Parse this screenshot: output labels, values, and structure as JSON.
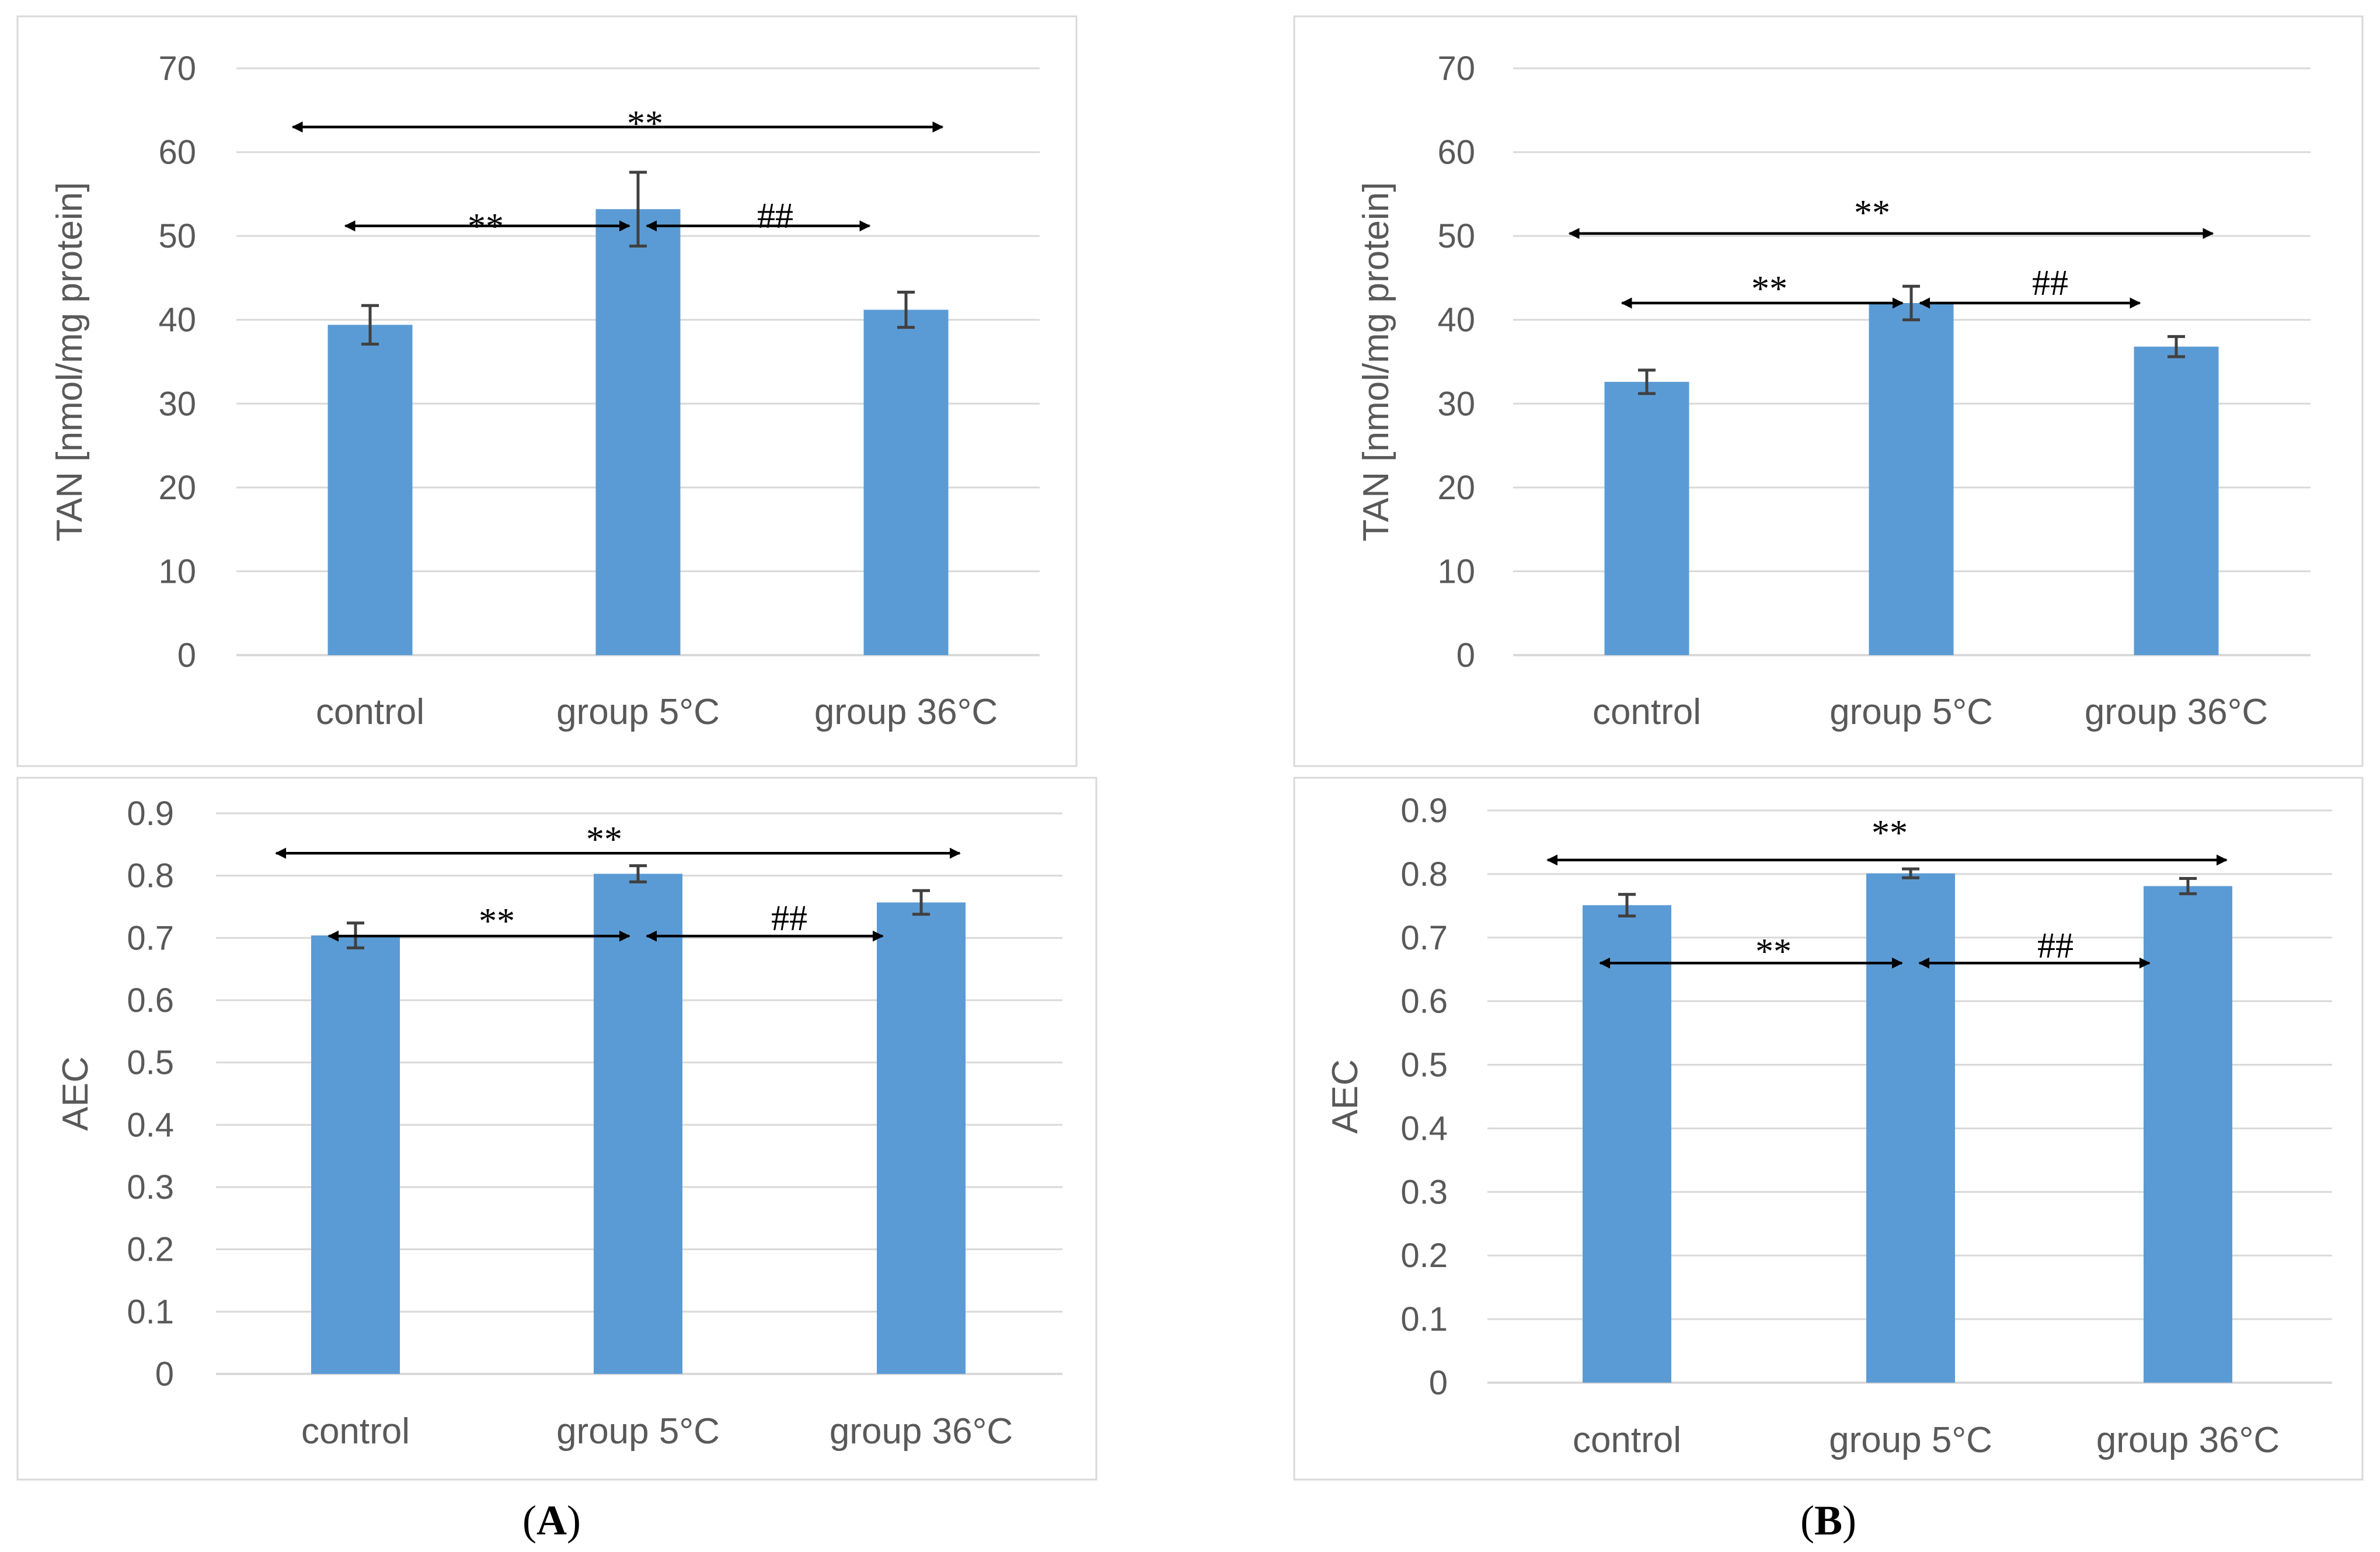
{
  "colors": {
    "bar": "#5b9bd5",
    "grid": "#d9d9d9",
    "axis_text": "#595959",
    "frame": "#d9d9d9",
    "error_bar": "#404040",
    "annotation": "#000000"
  },
  "panel_labels": [
    {
      "open": "(",
      "letter": "A",
      "close": ")"
    },
    {
      "open": "(",
      "letter": "B",
      "close": ")"
    }
  ],
  "chart_data": [
    {
      "id": "A-TAN",
      "type": "bar",
      "categories": [
        "control",
        "group 5°C",
        "group 36°C"
      ],
      "values": [
        39.4,
        53.2,
        41.2
      ],
      "errors": [
        2.3,
        4.4,
        2.1
      ],
      "ylabel": "TAN [nmol/mg protein]",
      "ylim": [
        0,
        70
      ],
      "ytick_step": 10,
      "yticks": [
        "0",
        "10",
        "20",
        "30",
        "40",
        "50",
        "60",
        "70"
      ],
      "grid": true,
      "annotations": [
        {
          "type": "double-arrow",
          "from": 0,
          "to": 2,
          "y": 63,
          "label": "**"
        },
        {
          "type": "double-arrow",
          "from": 0,
          "to": 1,
          "y": 51.2,
          "label": "**"
        },
        {
          "type": "double-arrow",
          "from": 1,
          "to": 2,
          "y": 51.2,
          "label": "##"
        }
      ]
    },
    {
      "id": "B-TAN",
      "type": "bar",
      "categories": [
        "control",
        "group 5°C",
        "group 36°C"
      ],
      "values": [
        32.6,
        42.0,
        36.8
      ],
      "errors": [
        1.4,
        2.0,
        1.2
      ],
      "ylabel": "TAN [nmol/mg protein]",
      "ylim": [
        0,
        70
      ],
      "ytick_step": 10,
      "yticks": [
        "0",
        "10",
        "20",
        "30",
        "40",
        "50",
        "60",
        "70"
      ],
      "grid": true,
      "annotations": [
        {
          "type": "double-arrow",
          "from": 0,
          "to": 2,
          "y": 50.3,
          "label": "**"
        },
        {
          "type": "double-arrow",
          "from": 0,
          "to": 1,
          "y": 42.0,
          "label": "**"
        },
        {
          "type": "double-arrow",
          "from": 1,
          "to": 2,
          "y": 42.0,
          "label": "##"
        }
      ]
    },
    {
      "id": "A-AEC",
      "type": "bar",
      "categories": [
        "control",
        "group 5°C",
        "group 36°C"
      ],
      "values": [
        0.704,
        0.803,
        0.757
      ],
      "errors": [
        0.02,
        0.013,
        0.019
      ],
      "ylabel": "AEC",
      "ylim": [
        0,
        0.9
      ],
      "ytick_step": 0.1,
      "yticks": [
        "0",
        "0.1",
        "0.2",
        "0.3",
        "0.4",
        "0.5",
        "0.6",
        "0.7",
        "0.8",
        "0.9"
      ],
      "grid": true,
      "annotations": [
        {
          "type": "double-arrow",
          "from": 0,
          "to": 2,
          "y": 0.836,
          "label": "**"
        },
        {
          "type": "double-arrow",
          "from": 0,
          "to": 1,
          "y": 0.703,
          "label": "**"
        },
        {
          "type": "double-arrow",
          "from": 1,
          "to": 2,
          "y": 0.703,
          "label": "##"
        }
      ]
    },
    {
      "id": "B-AEC",
      "type": "bar",
      "categories": [
        "control",
        "group 5°C",
        "group 36°C"
      ],
      "values": [
        0.751,
        0.801,
        0.781
      ],
      "errors": [
        0.017,
        0.007,
        0.012
      ],
      "ylabel": "AEC",
      "ylim": [
        0,
        0.9
      ],
      "ytick_step": 0.1,
      "yticks": [
        "0",
        "0.1",
        "0.2",
        "0.3",
        "0.4",
        "0.5",
        "0.6",
        "0.7",
        "0.8",
        "0.9"
      ],
      "grid": true,
      "annotations": [
        {
          "type": "double-arrow",
          "from": 0,
          "to": 2,
          "y": 0.822,
          "label": "**"
        },
        {
          "type": "double-arrow",
          "from": 0,
          "to": 1,
          "y": 0.66,
          "label": "**"
        },
        {
          "type": "double-arrow",
          "from": 1,
          "to": 2,
          "y": 0.66,
          "label": "##"
        }
      ]
    }
  ]
}
